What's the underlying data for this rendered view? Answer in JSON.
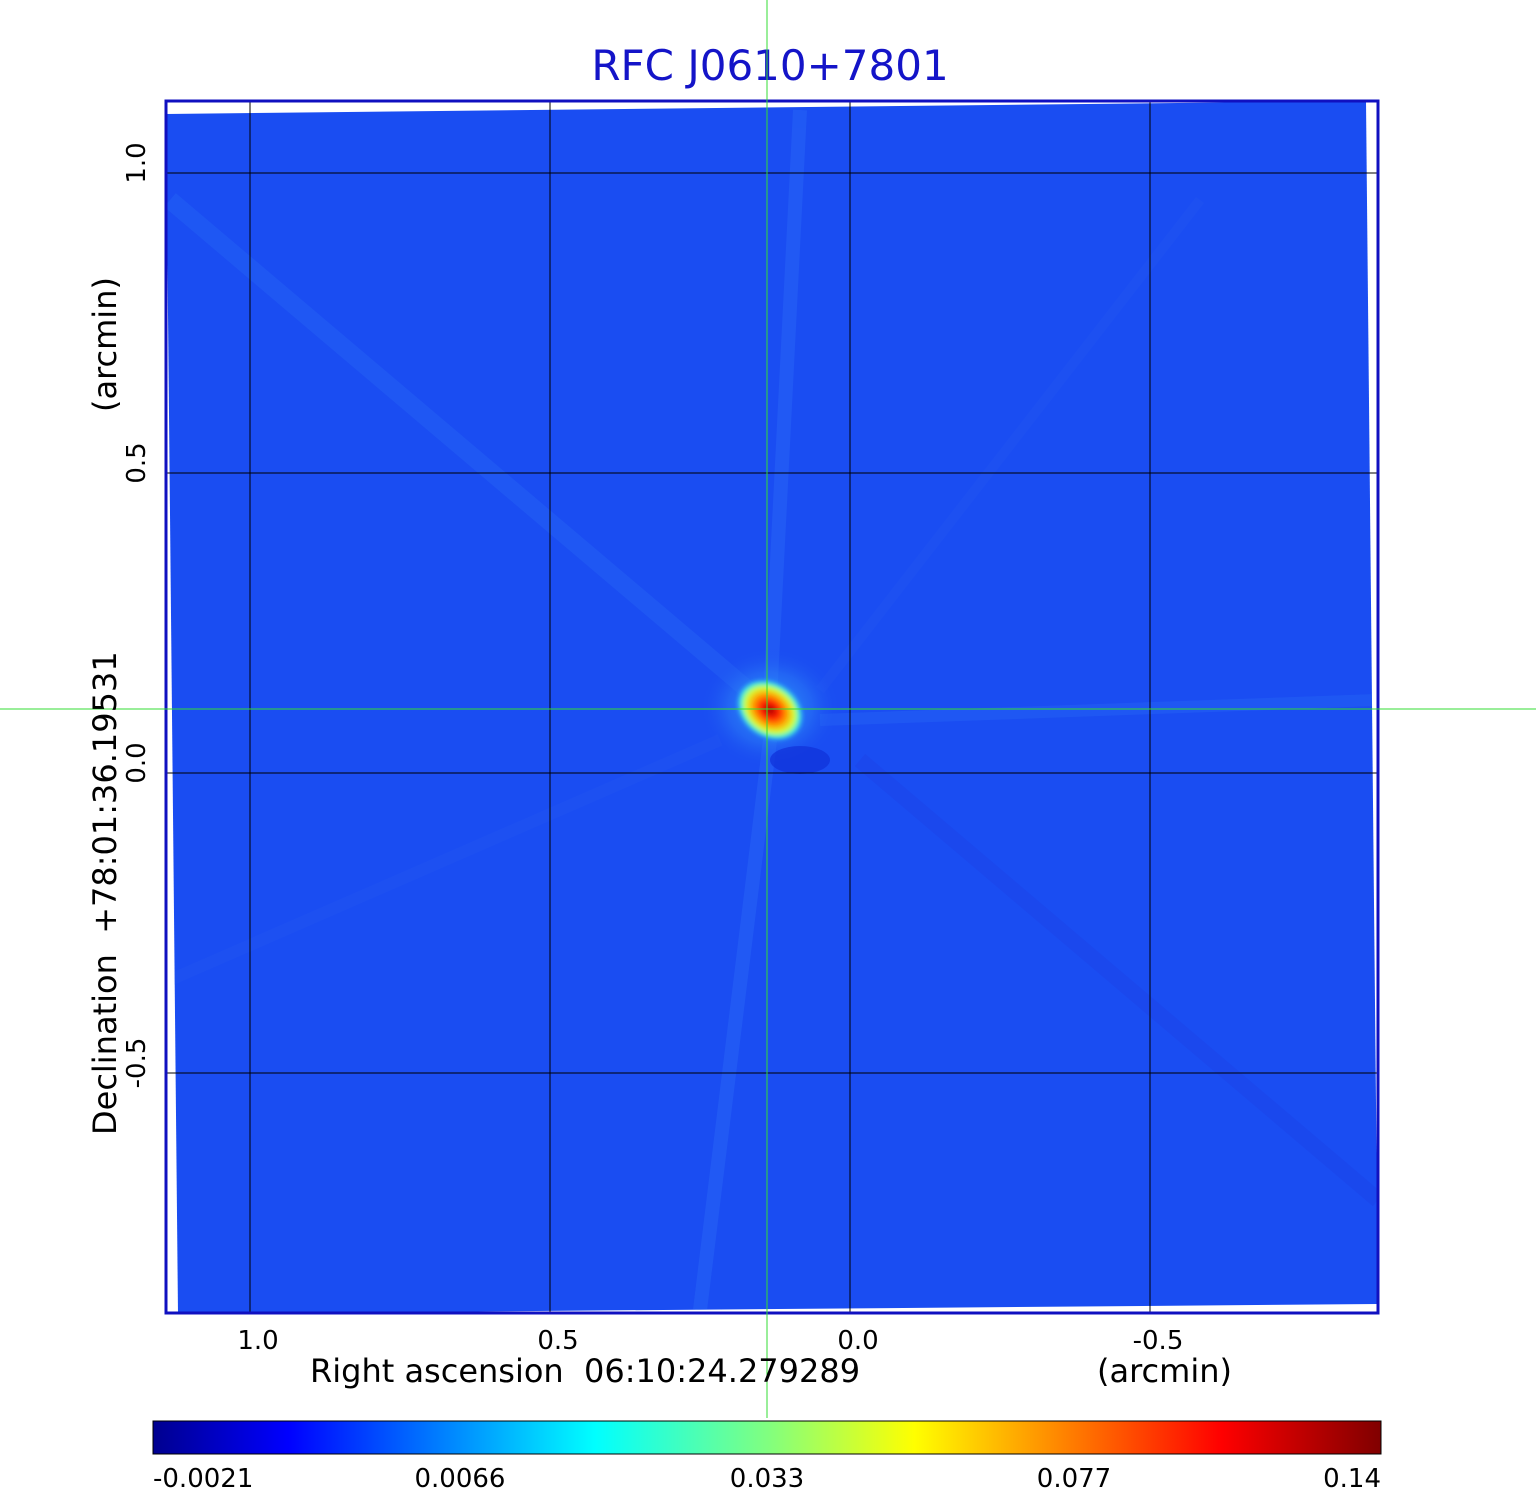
{
  "chart_data": {
    "type": "heatmap",
    "title": "RFC J0610+7801",
    "xlabel": "Right ascension  06:10:24.279289",
    "xlabel_unit": "(arcmin)",
    "ylabel": "Declination  +78:01:36.19531",
    "ylabel_unit": "(arcmin)",
    "x_ticks": [
      {
        "value": 1.0,
        "label": "1.0"
      },
      {
        "value": 0.5,
        "label": "0.5"
      },
      {
        "value": 0.0,
        "label": "0.0"
      },
      {
        "value": -0.5,
        "label": "-0.5"
      }
    ],
    "y_ticks": [
      {
        "value": 1.0,
        "label": "1.0"
      },
      {
        "value": 0.5,
        "label": "0.5"
      },
      {
        "value": 0.0,
        "label": "0.0"
      },
      {
        "value": -0.5,
        "label": "-0.5"
      }
    ],
    "xlim": [
      1.14,
      -0.88
    ],
    "ylim": [
      -0.9,
      1.12
    ],
    "grid": true,
    "crosshair": {
      "x": 0.14,
      "y": 0.106
    },
    "source": {
      "x": 0.14,
      "y": 0.106,
      "peak": 0.14
    },
    "colorbar": {
      "colormap": "jet",
      "labels": [
        "-0.0021",
        "0.0066",
        "0.033",
        "0.077",
        "0.14"
      ]
    },
    "colors": {
      "title": "#1414c8",
      "frame": "#1010c0",
      "crosshair": "#33dd33",
      "grid": "#000000",
      "background_map": "#1a4df2"
    }
  }
}
